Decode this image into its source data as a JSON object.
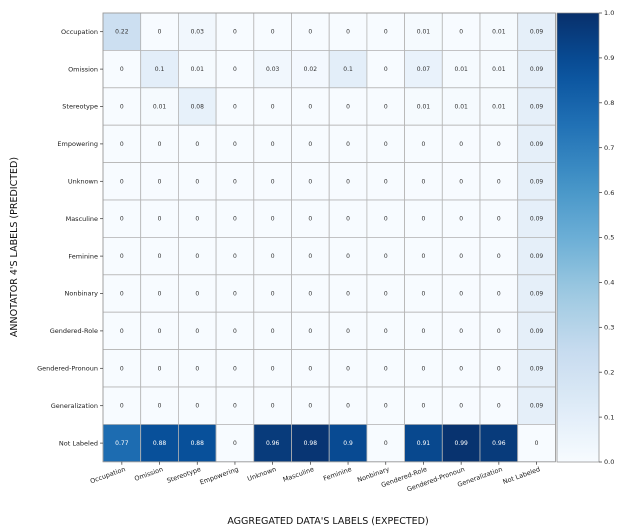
{
  "chart_data": {
    "type": "heatmap",
    "xlabel": "AGGREGATED DATA'S LABELS (EXPECTED)",
    "ylabel": "ANNOTATOR 4'S LABELS (PREDICTED)",
    "x_categories": [
      "Occupation",
      "Omission",
      "Stereotype",
      "Empowering",
      "Unknown",
      "Masculine",
      "Feminine",
      "Nonbinary",
      "Gendered-Role",
      "Gendered-Pronoun",
      "Generalization",
      "Not Labeled"
    ],
    "y_categories": [
      "Occupation",
      "Omission",
      "Stereotype",
      "Empowering",
      "Unknown",
      "Masculine",
      "Feminine",
      "Nonbinary",
      "Gendered-Role",
      "Gendered-Pronoun",
      "Generalization",
      "Not Labeled"
    ],
    "values": [
      [
        "0.22",
        "0",
        "0.03",
        "0",
        "0",
        "0",
        "0",
        "0",
        "0.01",
        "0",
        "0.01",
        "0.09"
      ],
      [
        "0",
        "0.1",
        "0.01",
        "0",
        "0.03",
        "0.02",
        "0.1",
        "0",
        "0.07",
        "0.01",
        "0.01",
        "0.09"
      ],
      [
        "0",
        "0.01",
        "0.08",
        "0",
        "0",
        "0",
        "0",
        "0",
        "0.01",
        "0.01",
        "0.01",
        "0.09"
      ],
      [
        "0",
        "0",
        "0",
        "0",
        "0",
        "0",
        "0",
        "0",
        "0",
        "0",
        "0",
        "0.09"
      ],
      [
        "0",
        "0",
        "0",
        "0",
        "0",
        "0",
        "0",
        "0",
        "0",
        "0",
        "0",
        "0.09"
      ],
      [
        "0",
        "0",
        "0",
        "0",
        "0",
        "0",
        "0",
        "0",
        "0",
        "0",
        "0",
        "0.09"
      ],
      [
        "0",
        "0",
        "0",
        "0",
        "0",
        "0",
        "0",
        "0",
        "0",
        "0",
        "0",
        "0.09"
      ],
      [
        "0",
        "0",
        "0",
        "0",
        "0",
        "0",
        "0",
        "0",
        "0",
        "0",
        "0",
        "0.09"
      ],
      [
        "0",
        "0",
        "0",
        "0",
        "0",
        "0",
        "0",
        "0",
        "0",
        "0",
        "0",
        "0.09"
      ],
      [
        "0",
        "0",
        "0",
        "0",
        "0",
        "0",
        "0",
        "0",
        "0",
        "0",
        "0",
        "0.09"
      ],
      [
        "0",
        "0",
        "0",
        "0",
        "0",
        "0",
        "0",
        "0",
        "0",
        "0",
        "0",
        "0.09"
      ],
      [
        "0.77",
        "0.88",
        "0.88",
        "0",
        "0.96",
        "0.98",
        "0.9",
        "0",
        "0.91",
        "0.99",
        "0.96",
        "0"
      ]
    ],
    "colorbar": {
      "range": [
        0.0,
        1.0
      ],
      "ticks": [
        "0.0",
        "0.1",
        "0.2",
        "0.3",
        "0.4",
        "0.5",
        "0.6",
        "0.7",
        "0.8",
        "0.9",
        "1.0"
      ],
      "colormap": "Blues",
      "color_low": "#f7fbff",
      "color_high": "#08306b"
    }
  }
}
